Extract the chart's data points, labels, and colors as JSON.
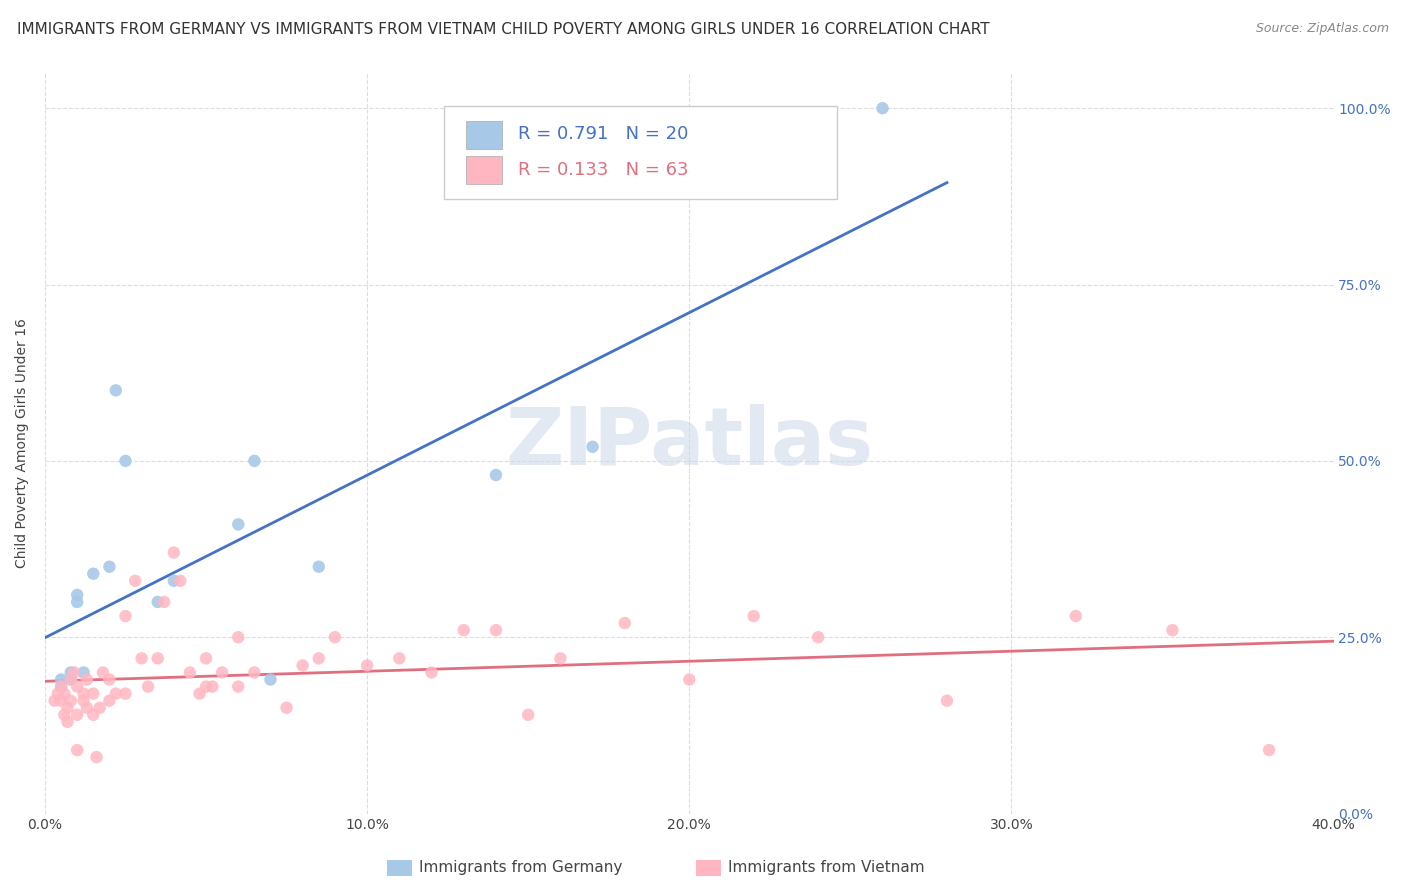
{
  "title": "IMMIGRANTS FROM GERMANY VS IMMIGRANTS FROM VIETNAM CHILD POVERTY AMONG GIRLS UNDER 16 CORRELATION CHART",
  "source": "Source: ZipAtlas.com",
  "ylabel": "Child Poverty Among Girls Under 16",
  "x_tick_labels": [
    "0.0%",
    "10.0%",
    "20.0%",
    "30.0%",
    "40.0%"
  ],
  "x_tick_values": [
    0.0,
    0.1,
    0.2,
    0.3,
    0.4
  ],
  "y_tick_labels": [
    "0.0%",
    "25.0%",
    "50.0%",
    "75.0%",
    "100.0%"
  ],
  "y_tick_values": [
    0.0,
    0.25,
    0.5,
    0.75,
    1.0
  ],
  "xlim": [
    0.0,
    0.4
  ],
  "ylim": [
    0.0,
    1.05
  ],
  "germany_color": "#a8c8e8",
  "vietnam_color": "#ffb6c1",
  "germany_line_color": "#4472c4",
  "vietnam_line_color": "#e07080",
  "germany_scatter": [
    [
      0.005,
      0.18
    ],
    [
      0.005,
      0.19
    ],
    [
      0.008,
      0.19
    ],
    [
      0.008,
      0.2
    ],
    [
      0.01,
      0.3
    ],
    [
      0.01,
      0.31
    ],
    [
      0.012,
      0.2
    ],
    [
      0.015,
      0.34
    ],
    [
      0.02,
      0.35
    ],
    [
      0.022,
      0.6
    ],
    [
      0.025,
      0.5
    ],
    [
      0.035,
      0.3
    ],
    [
      0.04,
      0.33
    ],
    [
      0.06,
      0.41
    ],
    [
      0.065,
      0.5
    ],
    [
      0.07,
      0.19
    ],
    [
      0.085,
      0.35
    ],
    [
      0.14,
      0.48
    ],
    [
      0.17,
      0.52
    ],
    [
      0.26,
      1.0
    ]
  ],
  "vietnam_scatter": [
    [
      0.003,
      0.16
    ],
    [
      0.004,
      0.17
    ],
    [
      0.005,
      0.16
    ],
    [
      0.005,
      0.18
    ],
    [
      0.006,
      0.14
    ],
    [
      0.006,
      0.17
    ],
    [
      0.007,
      0.15
    ],
    [
      0.007,
      0.13
    ],
    [
      0.008,
      0.19
    ],
    [
      0.008,
      0.16
    ],
    [
      0.009,
      0.2
    ],
    [
      0.01,
      0.18
    ],
    [
      0.01,
      0.14
    ],
    [
      0.01,
      0.09
    ],
    [
      0.012,
      0.17
    ],
    [
      0.012,
      0.16
    ],
    [
      0.013,
      0.19
    ],
    [
      0.013,
      0.15
    ],
    [
      0.015,
      0.17
    ],
    [
      0.015,
      0.14
    ],
    [
      0.016,
      0.08
    ],
    [
      0.017,
      0.15
    ],
    [
      0.018,
      0.2
    ],
    [
      0.02,
      0.16
    ],
    [
      0.02,
      0.19
    ],
    [
      0.022,
      0.17
    ],
    [
      0.025,
      0.17
    ],
    [
      0.025,
      0.28
    ],
    [
      0.028,
      0.33
    ],
    [
      0.03,
      0.22
    ],
    [
      0.032,
      0.18
    ],
    [
      0.035,
      0.22
    ],
    [
      0.037,
      0.3
    ],
    [
      0.04,
      0.37
    ],
    [
      0.042,
      0.33
    ],
    [
      0.045,
      0.2
    ],
    [
      0.048,
      0.17
    ],
    [
      0.05,
      0.22
    ],
    [
      0.05,
      0.18
    ],
    [
      0.052,
      0.18
    ],
    [
      0.055,
      0.2
    ],
    [
      0.06,
      0.18
    ],
    [
      0.06,
      0.25
    ],
    [
      0.065,
      0.2
    ],
    [
      0.075,
      0.15
    ],
    [
      0.08,
      0.21
    ],
    [
      0.085,
      0.22
    ],
    [
      0.09,
      0.25
    ],
    [
      0.1,
      0.21
    ],
    [
      0.11,
      0.22
    ],
    [
      0.12,
      0.2
    ],
    [
      0.13,
      0.26
    ],
    [
      0.14,
      0.26
    ],
    [
      0.15,
      0.14
    ],
    [
      0.16,
      0.22
    ],
    [
      0.18,
      0.27
    ],
    [
      0.2,
      0.19
    ],
    [
      0.22,
      0.28
    ],
    [
      0.24,
      0.25
    ],
    [
      0.28,
      0.16
    ],
    [
      0.32,
      0.28
    ],
    [
      0.35,
      0.26
    ],
    [
      0.38,
      0.09
    ]
  ],
  "watermark_text": "ZIPatlas",
  "background_color": "#ffffff",
  "grid_color": "#dddddd",
  "title_fontsize": 11,
  "axis_label_fontsize": 10,
  "tick_fontsize": 10,
  "source_fontsize": 9
}
